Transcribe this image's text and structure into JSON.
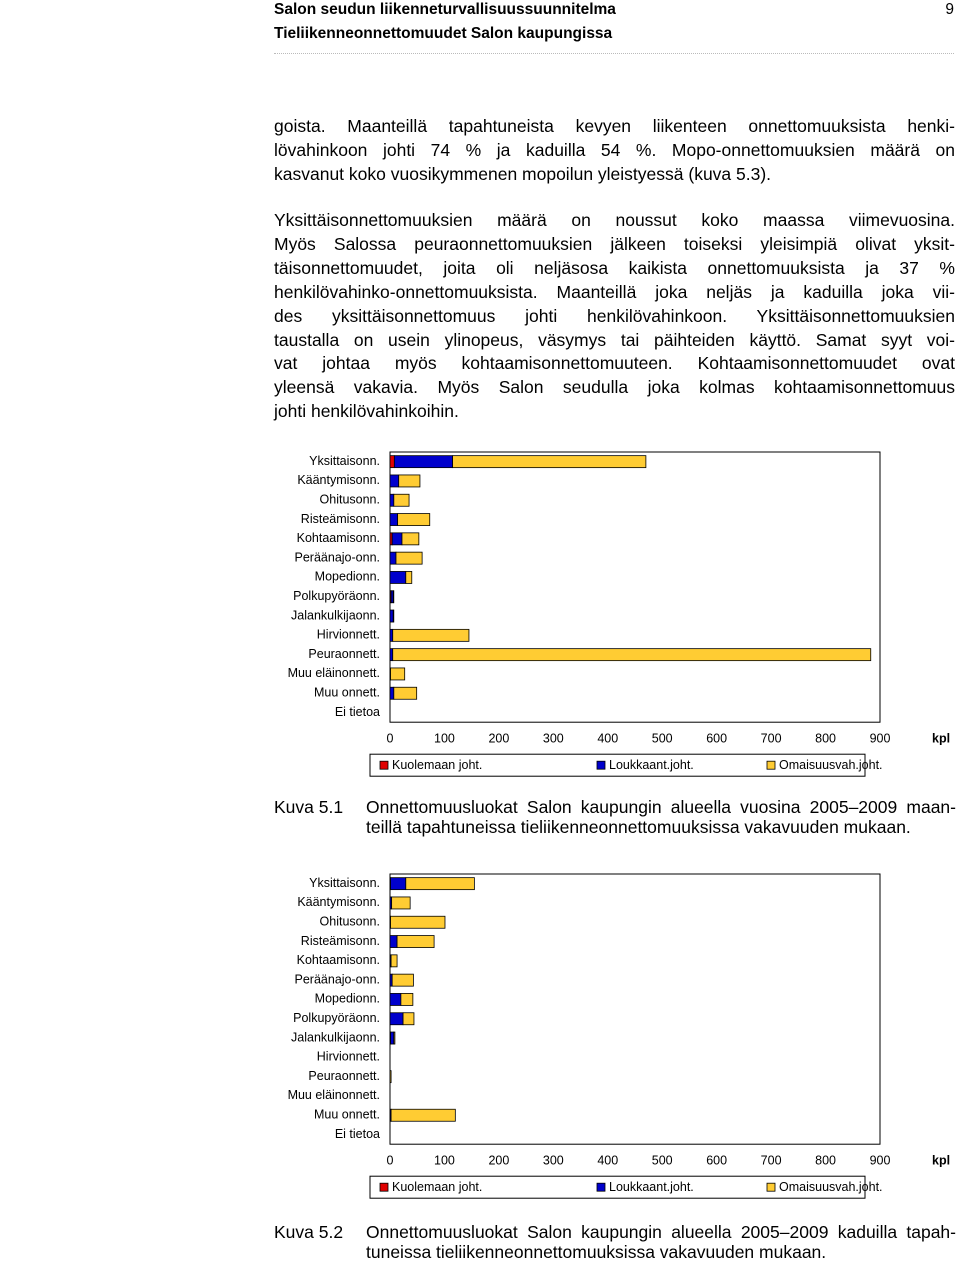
{
  "header": {
    "title": "Salon seudun liikenneturvallisuussuunnitelma",
    "subtitle": "Tieliikenneonnettomuudet Salon kaupungissa",
    "page_number": "9"
  },
  "paragraphs": [
    [
      "goista. Maanteillä tapahtuneista kevyen liikenteen onnettomuuksista henki-",
      "lövahinkoon johti 74 % ja kaduilla 54 %. Mopo-onnettomuuksien määrä on",
      "kasvanut koko vuosikymmenen mopoilun yleistyessä (kuva 5.3)."
    ],
    [
      "Yksittäisonnettomuuksien määrä on noussut koko maassa viimevuosina.",
      "Myös Salossa peuraonnettomuuksien jälkeen toiseksi yleisimpiä olivat yksit-",
      "täisonnettomuudet, joita oli neljäsosa kaikista onnettomuuksista ja 37 %",
      "henkilövahinko-onnettomuuksista. Maanteillä joka neljäs ja kaduilla joka vii-",
      "des yksittäisonnettomuus johti henkilövahinkoon. Yksittäisonnettomuuksien",
      "taustalla on usein ylinopeus, väsymys tai päihteiden käyttö. Samat syyt voi-",
      "vat johtaa myös kohtaamisonnettomuuteen. Kohtaamisonnettomuudet ovat",
      "yleensä vakavia. Myös Salon seudulla joka kolmas kohtaamisonnettomuus",
      "johti henkilövahinkoihin."
    ]
  ],
  "chart_data": [
    {
      "type": "bar",
      "orientation": "horizontal",
      "stacked": true,
      "x_unit": "kpl",
      "categories": [
        "Yksittaisonn.",
        "Kääntymisonn.",
        "Ohitusonn.",
        "Risteämisonn.",
        "Kohtaamisonn.",
        "Peräänajo-onn.",
        "Mopedionn.",
        "Polkupyöräonn.",
        "Jalankulkijaonn.",
        "Hirvionnett.",
        "Peuraonnett.",
        "Muu eläinonnett.",
        "Muu onnett.",
        "Ei tietoa"
      ],
      "series": [
        {
          "name": "Kuolemaan joht.",
          "color": "#e00000",
          "values": [
            8,
            0,
            0,
            0,
            4,
            0,
            0,
            2,
            0,
            0,
            0,
            0,
            0,
            0
          ]
        },
        {
          "name": "Loukkaant.joht.",
          "color": "#0000cc",
          "values": [
            107,
            16,
            7,
            14,
            18,
            11,
            29,
            4,
            6,
            5,
            5,
            1,
            7,
            0
          ]
        },
        {
          "name": "Omaisuusvah.joht.",
          "color": "#ffcc33",
          "values": [
            355,
            39,
            28,
            59,
            31,
            48,
            11,
            1,
            1,
            140,
            878,
            26,
            42,
            0
          ]
        }
      ],
      "xlim": [
        0,
        900
      ],
      "xticks": [
        0,
        100,
        200,
        300,
        400,
        500,
        600,
        700,
        800,
        900
      ]
    },
    {
      "type": "bar",
      "orientation": "horizontal",
      "stacked": true,
      "x_unit": "kpl",
      "categories": [
        "Yksittaisonn.",
        "Kääntymisonn.",
        "Ohitusonn.",
        "Risteämisonn.",
        "Kohtaamisonn.",
        "Peräänajo-onn.",
        "Mopedionn.",
        "Polkupyöräonn.",
        "Jalankulkijaonn.",
        "Hirvionnett.",
        "Peuraonnett.",
        "Muu eläinonnett.",
        "Muu onnett.",
        "Ei tietoa"
      ],
      "series": [
        {
          "name": "Kuolemaan joht.",
          "color": "#e00000",
          "values": [
            1,
            0,
            0,
            0,
            0,
            0,
            0,
            0,
            1,
            0,
            0,
            0,
            0,
            0
          ]
        },
        {
          "name": "Loukkaant.joht.",
          "color": "#0000cc",
          "values": [
            28,
            3,
            1,
            13,
            2,
            4,
            20,
            24,
            6,
            0,
            0,
            0,
            2,
            0
          ]
        },
        {
          "name": "Omaisuusvah.joht.",
          "color": "#ffcc33",
          "values": [
            126,
            34,
            100,
            68,
            11,
            39,
            22,
            20,
            2,
            0,
            2,
            0,
            118,
            0
          ]
        }
      ],
      "xlim": [
        0,
        900
      ],
      "xticks": [
        0,
        100,
        200,
        300,
        400,
        500,
        600,
        700,
        800,
        900
      ]
    }
  ],
  "captions": [
    {
      "label": "Kuva 5.1",
      "lines": [
        "Onnettomuusluokat Salon kaupungin alueella vuosina 2005–2009 maan-",
        "teillä tapahtuneissa tieliikenneonnettomuuksissa vakavuuden mukaan."
      ]
    },
    {
      "label": "Kuva 5.2",
      "lines": [
        "Onnettomuusluokat Salon kaupungin alueella 2005–2009 kaduilla tapah-",
        "tuneissa tieliikenneonnettomuuksissa vakavuuden mukaan."
      ]
    }
  ]
}
